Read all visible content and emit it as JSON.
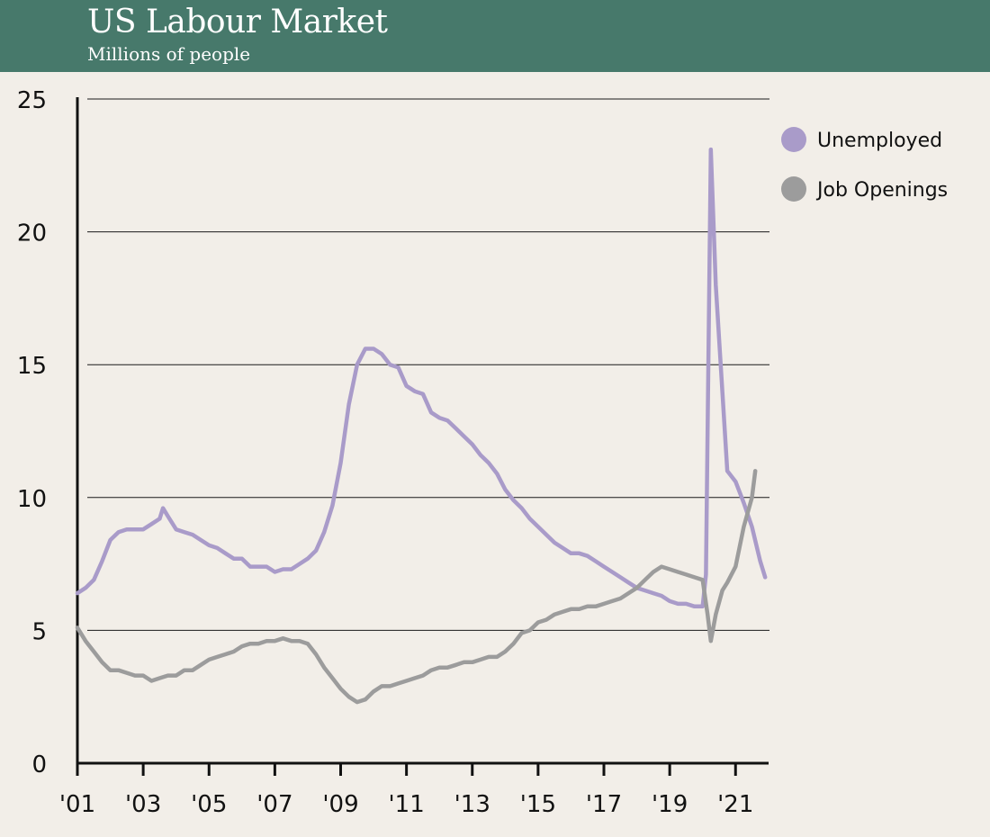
{
  "header": {
    "title": "US Labour Market",
    "subtitle": "Millions of people",
    "background_color": "#47796b"
  },
  "chart_data": {
    "type": "line",
    "title": "US Labour Market",
    "subtitle": "Millions of people",
    "xlabel": "",
    "ylabel": "",
    "x_range": [
      2001.0,
      2021.95
    ],
    "ylim": [
      0,
      25
    ],
    "y_ticks": [
      0,
      5,
      10,
      15,
      20,
      25
    ],
    "y_tick_labels": [
      "0",
      "5",
      "10",
      "15",
      "20",
      "25"
    ],
    "x_ticks": [
      2001,
      2003,
      2005,
      2007,
      2009,
      2011,
      2013,
      2015,
      2017,
      2019,
      2021
    ],
    "x_tick_labels": [
      "'01",
      "'03",
      "'05",
      "'07",
      "'09",
      "'11",
      "'13",
      "'15",
      "'17",
      "'19",
      "'21"
    ],
    "grid": "horizontal",
    "legend_position": "top-right",
    "series": [
      {
        "name": "Unemployed",
        "color": "#a99bc9",
        "points": [
          [
            2001.0,
            6.4
          ],
          [
            2001.25,
            6.6
          ],
          [
            2001.5,
            6.9
          ],
          [
            2001.75,
            7.6
          ],
          [
            2002.0,
            8.4
          ],
          [
            2002.25,
            8.7
          ],
          [
            2002.5,
            8.8
          ],
          [
            2002.75,
            8.8
          ],
          [
            2003.0,
            8.8
          ],
          [
            2003.25,
            9.0
          ],
          [
            2003.5,
            9.2
          ],
          [
            2003.6,
            9.6
          ],
          [
            2003.75,
            9.3
          ],
          [
            2004.0,
            8.8
          ],
          [
            2004.25,
            8.7
          ],
          [
            2004.5,
            8.6
          ],
          [
            2004.75,
            8.4
          ],
          [
            2005.0,
            8.2
          ],
          [
            2005.25,
            8.1
          ],
          [
            2005.5,
            7.9
          ],
          [
            2005.75,
            7.7
          ],
          [
            2006.0,
            7.7
          ],
          [
            2006.25,
            7.4
          ],
          [
            2006.5,
            7.4
          ],
          [
            2006.75,
            7.4
          ],
          [
            2007.0,
            7.2
          ],
          [
            2007.25,
            7.3
          ],
          [
            2007.5,
            7.3
          ],
          [
            2007.75,
            7.5
          ],
          [
            2008.0,
            7.7
          ],
          [
            2008.25,
            8.0
          ],
          [
            2008.5,
            8.7
          ],
          [
            2008.75,
            9.7
          ],
          [
            2009.0,
            11.3
          ],
          [
            2009.25,
            13.5
          ],
          [
            2009.5,
            15.0
          ],
          [
            2009.75,
            15.6
          ],
          [
            2010.0,
            15.6
          ],
          [
            2010.25,
            15.4
          ],
          [
            2010.5,
            15.0
          ],
          [
            2010.75,
            14.9
          ],
          [
            2011.0,
            14.2
          ],
          [
            2011.25,
            14.0
          ],
          [
            2011.5,
            13.9
          ],
          [
            2011.75,
            13.2
          ],
          [
            2012.0,
            13.0
          ],
          [
            2012.25,
            12.9
          ],
          [
            2012.5,
            12.6
          ],
          [
            2012.75,
            12.3
          ],
          [
            2013.0,
            12.0
          ],
          [
            2013.25,
            11.6
          ],
          [
            2013.5,
            11.3
          ],
          [
            2013.75,
            10.9
          ],
          [
            2014.0,
            10.3
          ],
          [
            2014.25,
            9.9
          ],
          [
            2014.5,
            9.6
          ],
          [
            2014.75,
            9.2
          ],
          [
            2015.0,
            8.9
          ],
          [
            2015.25,
            8.6
          ],
          [
            2015.5,
            8.3
          ],
          [
            2015.75,
            8.1
          ],
          [
            2016.0,
            7.9
          ],
          [
            2016.25,
            7.9
          ],
          [
            2016.5,
            7.8
          ],
          [
            2016.75,
            7.6
          ],
          [
            2017.0,
            7.4
          ],
          [
            2017.25,
            7.2
          ],
          [
            2017.5,
            7.0
          ],
          [
            2017.75,
            6.8
          ],
          [
            2018.0,
            6.6
          ],
          [
            2018.25,
            6.5
          ],
          [
            2018.5,
            6.4
          ],
          [
            2018.75,
            6.3
          ],
          [
            2019.0,
            6.1
          ],
          [
            2019.25,
            6.0
          ],
          [
            2019.5,
            6.0
          ],
          [
            2019.75,
            5.9
          ],
          [
            2020.0,
            5.9
          ],
          [
            2020.1,
            7.1
          ],
          [
            2020.25,
            23.1
          ],
          [
            2020.4,
            18.0
          ],
          [
            2020.6,
            14.0
          ],
          [
            2020.75,
            11.0
          ],
          [
            2021.0,
            10.6
          ],
          [
            2021.25,
            9.8
          ],
          [
            2021.5,
            8.9
          ],
          [
            2021.75,
            7.6
          ],
          [
            2021.9,
            7.0
          ]
        ]
      },
      {
        "name": "Job Openings",
        "color": "#9c9c9c",
        "points": [
          [
            2001.0,
            5.1
          ],
          [
            2001.25,
            4.6
          ],
          [
            2001.5,
            4.2
          ],
          [
            2001.75,
            3.8
          ],
          [
            2002.0,
            3.5
          ],
          [
            2002.25,
            3.5
          ],
          [
            2002.5,
            3.4
          ],
          [
            2002.75,
            3.3
          ],
          [
            2003.0,
            3.3
          ],
          [
            2003.25,
            3.1
          ],
          [
            2003.5,
            3.2
          ],
          [
            2003.75,
            3.3
          ],
          [
            2004.0,
            3.3
          ],
          [
            2004.25,
            3.5
          ],
          [
            2004.5,
            3.5
          ],
          [
            2004.75,
            3.7
          ],
          [
            2005.0,
            3.9
          ],
          [
            2005.25,
            4.0
          ],
          [
            2005.5,
            4.1
          ],
          [
            2005.75,
            4.2
          ],
          [
            2006.0,
            4.4
          ],
          [
            2006.25,
            4.5
          ],
          [
            2006.5,
            4.5
          ],
          [
            2006.75,
            4.6
          ],
          [
            2007.0,
            4.6
          ],
          [
            2007.25,
            4.7
          ],
          [
            2007.5,
            4.6
          ],
          [
            2007.75,
            4.6
          ],
          [
            2008.0,
            4.5
          ],
          [
            2008.25,
            4.1
          ],
          [
            2008.5,
            3.6
          ],
          [
            2008.75,
            3.2
          ],
          [
            2009.0,
            2.8
          ],
          [
            2009.25,
            2.5
          ],
          [
            2009.5,
            2.3
          ],
          [
            2009.75,
            2.4
          ],
          [
            2010.0,
            2.7
          ],
          [
            2010.25,
            2.9
          ],
          [
            2010.5,
            2.9
          ],
          [
            2010.75,
            3.0
          ],
          [
            2011.0,
            3.1
          ],
          [
            2011.25,
            3.2
          ],
          [
            2011.5,
            3.3
          ],
          [
            2011.75,
            3.5
          ],
          [
            2012.0,
            3.6
          ],
          [
            2012.25,
            3.6
          ],
          [
            2012.5,
            3.7
          ],
          [
            2012.75,
            3.8
          ],
          [
            2013.0,
            3.8
          ],
          [
            2013.25,
            3.9
          ],
          [
            2013.5,
            4.0
          ],
          [
            2013.75,
            4.0
          ],
          [
            2014.0,
            4.2
          ],
          [
            2014.25,
            4.5
          ],
          [
            2014.5,
            4.9
          ],
          [
            2014.75,
            5.0
          ],
          [
            2015.0,
            5.3
          ],
          [
            2015.25,
            5.4
          ],
          [
            2015.5,
            5.6
          ],
          [
            2015.75,
            5.7
          ],
          [
            2016.0,
            5.8
          ],
          [
            2016.25,
            5.8
          ],
          [
            2016.5,
            5.9
          ],
          [
            2016.75,
            5.9
          ],
          [
            2017.0,
            6.0
          ],
          [
            2017.25,
            6.1
          ],
          [
            2017.5,
            6.2
          ],
          [
            2017.75,
            6.4
          ],
          [
            2018.0,
            6.6
          ],
          [
            2018.25,
            6.9
          ],
          [
            2018.5,
            7.2
          ],
          [
            2018.75,
            7.4
          ],
          [
            2019.0,
            7.3
          ],
          [
            2019.25,
            7.2
          ],
          [
            2019.5,
            7.1
          ],
          [
            2019.75,
            7.0
          ],
          [
            2020.0,
            6.9
          ],
          [
            2020.15,
            5.6
          ],
          [
            2020.25,
            4.6
          ],
          [
            2020.4,
            5.6
          ],
          [
            2020.6,
            6.5
          ],
          [
            2020.75,
            6.8
          ],
          [
            2021.0,
            7.4
          ],
          [
            2021.25,
            8.9
          ],
          [
            2021.5,
            10.0
          ],
          [
            2021.6,
            11.0
          ]
        ]
      }
    ]
  }
}
